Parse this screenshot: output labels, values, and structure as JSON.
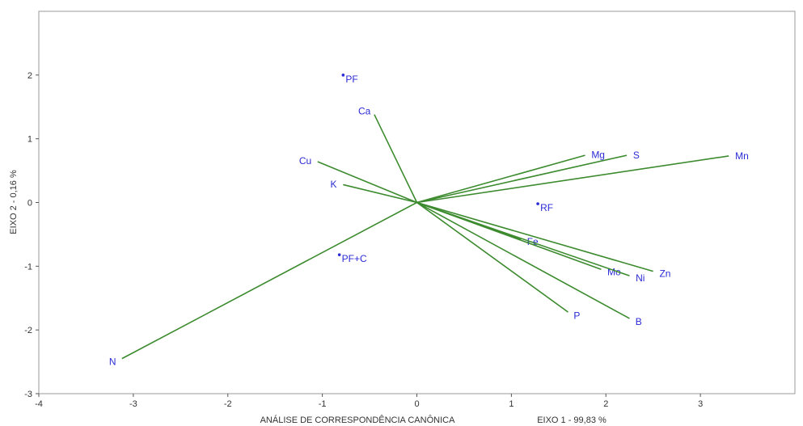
{
  "chart_data": {
    "type": "scatter",
    "title": "",
    "xlabel": "ANÁLISE DE CORRESPONDÊNCIA CANÔNICA",
    "xlabel2": "EIXO 1 - 99,83 %",
    "ylabel": "EIXO 2 - 0,16 %",
    "xlim": [
      -4,
      4
    ],
    "ylim": [
      -3,
      3
    ],
    "x_ticks": [
      -4,
      -3,
      -2,
      -1,
      0,
      1,
      2,
      3
    ],
    "y_ticks": [
      -3,
      -2,
      -1,
      0,
      1,
      2
    ],
    "grid": false,
    "vectors": [
      {
        "name": "Ca",
        "x": -0.45,
        "y": 1.38
      },
      {
        "name": "Cu",
        "x": -1.05,
        "y": 0.64
      },
      {
        "name": "K",
        "x": -0.78,
        "y": 0.28
      },
      {
        "name": "N",
        "x": -3.12,
        "y": -2.45
      },
      {
        "name": "Mg",
        "x": 1.78,
        "y": 0.74
      },
      {
        "name": "S",
        "x": 2.22,
        "y": 0.74
      },
      {
        "name": "Mn",
        "x": 3.3,
        "y": 0.73
      },
      {
        "name": "Fe",
        "x": 1.1,
        "y": -0.58
      },
      {
        "name": "Mo",
        "x": 1.95,
        "y": -1.05
      },
      {
        "name": "Ni",
        "x": 2.25,
        "y": -1.15
      },
      {
        "name": "Zn",
        "x": 2.5,
        "y": -1.08
      },
      {
        "name": "P",
        "x": 1.6,
        "y": -1.72
      },
      {
        "name": "B",
        "x": 2.25,
        "y": -1.82
      }
    ],
    "points": [
      {
        "name": "PF",
        "x": -0.78,
        "y": 2.0
      },
      {
        "name": "RF",
        "x": 1.28,
        "y": -0.02
      },
      {
        "name": "PF+C",
        "x": -0.82,
        "y": -0.82
      }
    ],
    "vector_color": "#3d8b2f",
    "label_color": "#2b2bd6"
  }
}
